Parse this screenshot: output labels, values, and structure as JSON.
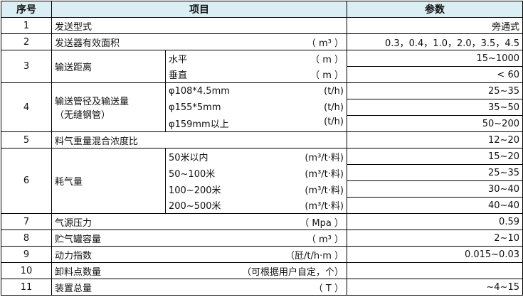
{
  "header": {
    "seq": "序号",
    "item": "项目",
    "param": "参数"
  },
  "rows": [
    {
      "no": "1",
      "item": "发送型式",
      "unit": "",
      "value": "旁通式"
    },
    {
      "no": "2",
      "item": "发送器有效面积",
      "unit": "（ m³ ）",
      "value": "0.3，0.4，1.0，2.0，3.5，4.5"
    },
    {
      "no": "3",
      "item": "输送距离",
      "subs": [
        {
          "label": "水平",
          "unit": "（ m ）",
          "value": "15~1000"
        },
        {
          "label": "垂直",
          "unit": "（ m ）",
          "value": "< 60"
        }
      ]
    },
    {
      "no": "4",
      "item": "输送管径及输送量",
      "item2": "（无缝钢管）",
      "subs": [
        {
          "label": "φ108*4.5mm",
          "unit": "(t/h)",
          "value": "25~35"
        },
        {
          "label": "φ155*5mm",
          "unit": "(t/h)",
          "value": "35~50"
        },
        {
          "label": "φ159mm以上",
          "unit": "(t/h)",
          "value": "50~200"
        }
      ]
    },
    {
      "no": "5",
      "item": "料气重量混合浓度比",
      "unit": "",
      "value": "12~20"
    },
    {
      "no": "6",
      "item": "耗气量",
      "subs": [
        {
          "label": "50米以内",
          "unit": "(m³/t·料)",
          "value": "15~20"
        },
        {
          "label": "50~100米",
          "unit": "(m³/t·料)",
          "value": "25~35"
        },
        {
          "label": "100~200米",
          "unit": "(m³/t·料)",
          "value": "30~40"
        },
        {
          "label": "200~500米",
          "unit": "(m³/t·料)",
          "value": "40~40"
        }
      ]
    },
    {
      "no": "7",
      "item": "气源压力",
      "unit": "（ Mpa ）",
      "value": "0.59"
    },
    {
      "no": "8",
      "item": "贮气罐容量",
      "unit": "（ m³ ）",
      "value": "2~10"
    },
    {
      "no": "9",
      "item": "动力指数",
      "unit": "（瓩/t/h·m ）",
      "value": "0.015~0.03"
    },
    {
      "no": "10",
      "item": "卸料点数量",
      "unit": "（可根据用户自定，个）",
      "value": ""
    },
    {
      "no": "11",
      "item": "装置总量",
      "unit": "（ T ）",
      "value": "~4~15"
    }
  ]
}
